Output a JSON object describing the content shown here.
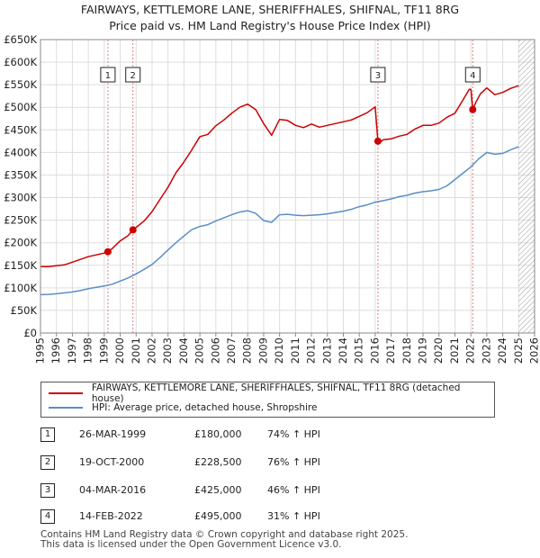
{
  "title_line1": "FAIRWAYS, KETTLEMORE LANE, SHERIFFHALES, SHIFNAL, TF11 8RG",
  "title_line2": "Price paid vs. HM Land Registry's House Price Index (HPI)",
  "chart_data": {
    "type": "line",
    "title": "FAIRWAYS, KETTLEMORE LANE, SHERIFFHALES, SHIFNAL, TF11 8RG",
    "subtitle": "Price paid vs. HM Land Registry's House Price Index (HPI)",
    "xlabel": "",
    "ylabel": "",
    "xlim": [
      1995,
      2026
    ],
    "ylim": [
      0,
      650000
    ],
    "y_ticks": [
      {
        "value": 0,
        "label": "£0"
      },
      {
        "value": 50000,
        "label": "£50K"
      },
      {
        "value": 100000,
        "label": "£100K"
      },
      {
        "value": 150000,
        "label": "£150K"
      },
      {
        "value": 200000,
        "label": "£200K"
      },
      {
        "value": 250000,
        "label": "£250K"
      },
      {
        "value": 300000,
        "label": "£300K"
      },
      {
        "value": 350000,
        "label": "£350K"
      },
      {
        "value": 400000,
        "label": "£400K"
      },
      {
        "value": 450000,
        "label": "£450K"
      },
      {
        "value": 500000,
        "label": "£500K"
      },
      {
        "value": 550000,
        "label": "£550K"
      },
      {
        "value": 600000,
        "label": "£600K"
      },
      {
        "value": 650000,
        "label": "£650K"
      }
    ],
    "x_ticks": [
      "1995",
      "1996",
      "1997",
      "1998",
      "1999",
      "2000",
      "2001",
      "2002",
      "2003",
      "2004",
      "2005",
      "2006",
      "2007",
      "2008",
      "2009",
      "2010",
      "2011",
      "2012",
      "2013",
      "2014",
      "2015",
      "2016",
      "2017",
      "2018",
      "2019",
      "2020",
      "2021",
      "2022",
      "2023",
      "2024",
      "2025",
      "2026"
    ],
    "grid": true,
    "hatched_after": 2025.0,
    "series": [
      {
        "name": "FAIRWAYS, KETTLEMORE LANE, SHERIFFHALES, SHIFNAL, TF11 8RG (detached house)",
        "color": "#cc0000",
        "x": [
          1995.0,
          1995.5,
          1996.0,
          1996.5,
          1997.0,
          1997.5,
          1998.0,
          1998.5,
          1999.0,
          1999.23,
          1999.5,
          2000.0,
          2000.5,
          2000.8,
          2001.0,
          2001.5,
          2002.0,
          2002.5,
          2003.0,
          2003.5,
          2004.0,
          2004.5,
          2005.0,
          2005.5,
          2006.0,
          2006.5,
          2007.0,
          2007.5,
          2008.0,
          2008.5,
          2009.0,
          2009.5,
          2010.0,
          2010.5,
          2011.0,
          2011.5,
          2012.0,
          2012.5,
          2013.0,
          2013.5,
          2014.0,
          2014.5,
          2015.0,
          2015.5,
          2016.0,
          2016.17,
          2016.25,
          2016.5,
          2017.0,
          2017.5,
          2018.0,
          2018.5,
          2019.0,
          2019.5,
          2020.0,
          2020.5,
          2021.0,
          2021.5,
          2021.9,
          2022.0,
          2022.12,
          2022.3,
          2022.6,
          2023.0,
          2023.5,
          2024.0,
          2024.5,
          2025.0
        ],
        "values": [
          147000,
          147000,
          149000,
          151000,
          157000,
          163000,
          169000,
          173000,
          177000,
          180000,
          187000,
          204000,
          216000,
          228500,
          234000,
          248000,
          269000,
          296000,
          323000,
          355000,
          379000,
          406000,
          435000,
          440000,
          459000,
          472000,
          487000,
          500000,
          507000,
          495000,
          464000,
          438000,
          473000,
          471000,
          460000,
          455000,
          463000,
          456000,
          460000,
          464000,
          468000,
          472000,
          480000,
          488000,
          501000,
          425000,
          421000,
          428000,
          430000,
          436000,
          440000,
          452000,
          460000,
          460000,
          465000,
          478000,
          487000,
          516000,
          540000,
          540000,
          495000,
          510000,
          530000,
          543000,
          528000,
          533000,
          542000,
          548000
        ]
      },
      {
        "name": "HPI: Average price, detached house, Shropshire",
        "color": "#5a8ec8",
        "x": [
          1995.0,
          1995.5,
          1996.0,
          1996.5,
          1997.0,
          1997.5,
          1998.0,
          1998.5,
          1999.0,
          1999.5,
          2000.0,
          2000.5,
          2001.0,
          2001.5,
          2002.0,
          2002.5,
          2003.0,
          2003.5,
          2004.0,
          2004.5,
          2005.0,
          2005.5,
          2006.0,
          2006.5,
          2007.0,
          2007.5,
          2008.0,
          2008.5,
          2009.0,
          2009.5,
          2010.0,
          2010.5,
          2011.0,
          2011.5,
          2012.0,
          2012.5,
          2013.0,
          2013.5,
          2014.0,
          2014.5,
          2015.0,
          2015.5,
          2016.0,
          2016.5,
          2017.0,
          2017.5,
          2018.0,
          2018.5,
          2019.0,
          2019.5,
          2020.0,
          2020.5,
          2021.0,
          2021.5,
          2022.0,
          2022.5,
          2023.0,
          2023.5,
          2024.0,
          2024.5,
          2025.0
        ],
        "values": [
          85000,
          85500,
          87000,
          89000,
          91000,
          94000,
          98000,
          101000,
          104000,
          108000,
          115000,
          122000,
          131000,
          141000,
          152000,
          167000,
          184000,
          200000,
          215000,
          229000,
          236000,
          240000,
          248000,
          255000,
          262000,
          268000,
          271000,
          265000,
          249000,
          245000,
          262000,
          263000,
          261000,
          260000,
          261000,
          262000,
          264000,
          267000,
          270000,
          274000,
          280000,
          284000,
          290000,
          293000,
          297000,
          302000,
          305000,
          310000,
          313000,
          315000,
          318000,
          326000,
          340000,
          354000,
          368000,
          386000,
          400000,
          396000,
          398000,
          406000,
          413000
        ]
      }
    ],
    "sales": [
      {
        "num": "1",
        "date": "26-MAR-1999",
        "x": 1999.23,
        "price": "£180,000",
        "value": 180000,
        "hpi": "74% ↑ HPI"
      },
      {
        "num": "2",
        "date": "19-OCT-2000",
        "x": 2000.8,
        "price": "£228,500",
        "value": 228500,
        "hpi": "76% ↑ HPI"
      },
      {
        "num": "3",
        "date": "04-MAR-2016",
        "x": 2016.17,
        "price": "£425,000",
        "value": 425000,
        "hpi": "46% ↑ HPI"
      },
      {
        "num": "4",
        "date": "14-FEB-2022",
        "x": 2022.12,
        "price": "£495,000",
        "value": 495000,
        "hpi": "31% ↑ HPI"
      }
    ],
    "legend": [
      {
        "label": "FAIRWAYS, KETTLEMORE LANE, SHERIFFHALES, SHIFNAL, TF11 8RG (detached house)",
        "color": "#cc0000"
      },
      {
        "label": "HPI: Average price, detached house, Shropshire",
        "color": "#5a8ec8"
      }
    ]
  },
  "footer_line1": "Contains HM Land Registry data © Crown copyright and database right 2025.",
  "footer_line2": "This data is licensed under the Open Government Licence v3.0."
}
